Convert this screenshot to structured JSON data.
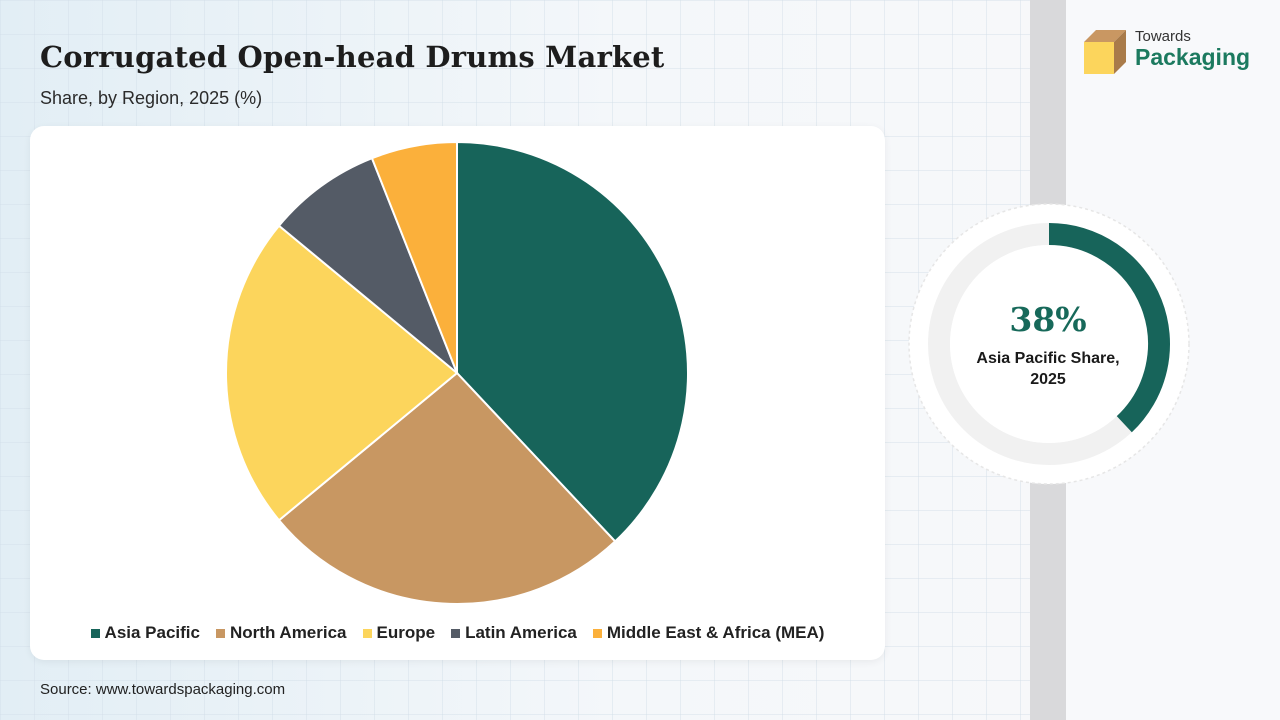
{
  "title": "Corrugated Open-head Drums Market",
  "subtitle": "Share, by Region, 2025 (%)",
  "source": "Source: www.towardspackaging.com",
  "logo": {
    "small": "Towards",
    "big": "Packaging"
  },
  "highlight": {
    "value": "38%",
    "label_line1": "Asia Pacific Share,",
    "label_line2": "2025",
    "fraction": 0.38
  },
  "colors": {
    "asia_pacific": "#17645a",
    "north_america": "#c89762",
    "europe": "#fcd55c",
    "latin_america": "#545b66",
    "mea": "#fbb03b",
    "donut_track": "#f1f1f1"
  },
  "chart_data": {
    "type": "pie",
    "title": "Corrugated Open-head Drums Market",
    "subtitle": "Share, by Region, 2025 (%)",
    "legend_position": "bottom",
    "categories": [
      "Asia Pacific",
      "North America",
      "Europe",
      "Latin America",
      "Middle East & Africa (MEA)"
    ],
    "values": [
      38,
      26,
      22,
      8,
      6
    ],
    "colors": [
      "#17645a",
      "#c89762",
      "#fcd55c",
      "#545b66",
      "#fbb03b"
    ]
  }
}
